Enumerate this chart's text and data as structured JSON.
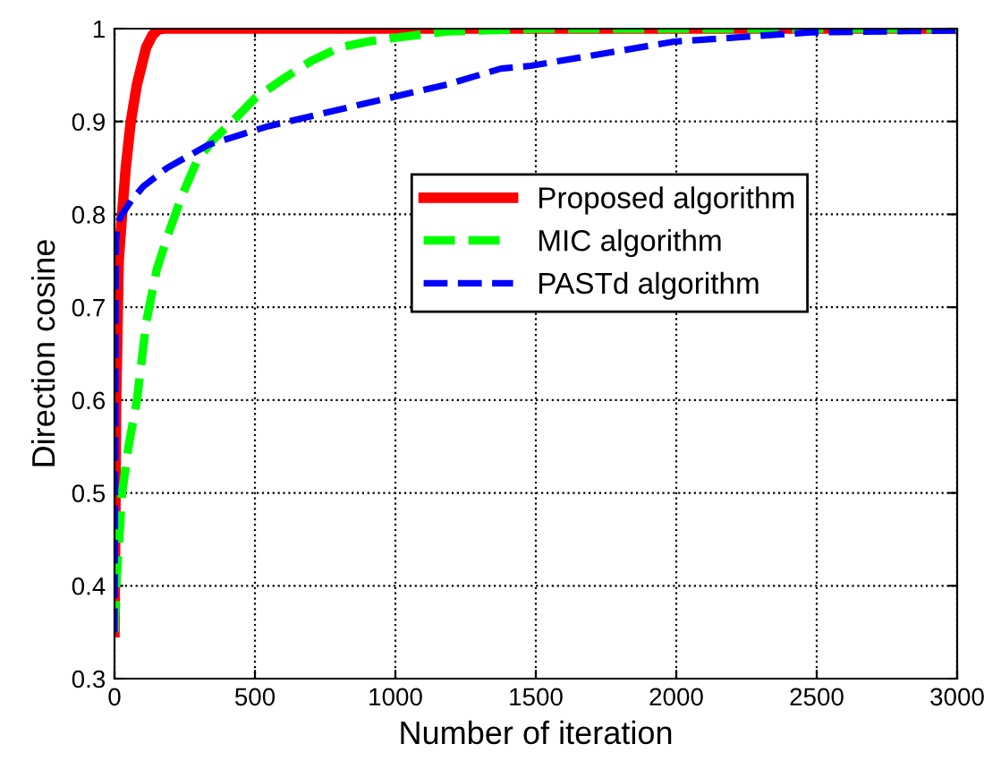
{
  "chart_data": {
    "type": "line",
    "xlabel": "Number of iteration",
    "ylabel": "Direction cosine",
    "xlim": [
      0,
      3000
    ],
    "ylim": [
      0.3,
      1
    ],
    "xticks": [
      0,
      500,
      1000,
      1500,
      2000,
      2500,
      3000
    ],
    "yticks": [
      0.3,
      0.4,
      0.5,
      0.6,
      0.7,
      0.8,
      0.9,
      1
    ],
    "grid": true,
    "legend": "center right",
    "series": [
      {
        "name": "Proposed algorithm",
        "color": "#ff0000",
        "line_style": "solid",
        "x": [
          0,
          6,
          15,
          27,
          40,
          58,
          80,
          113,
          135,
          155,
          175,
          3000
        ],
        "values": [
          0.35,
          0.6,
          0.75,
          0.8,
          0.85,
          0.9,
          0.94,
          0.98,
          0.993,
          0.999,
          1,
          1
        ]
      },
      {
        "name": "MIC algorithm",
        "color": "#00ff00",
        "line_style": "dashed",
        "x": [
          0,
          6,
          27,
          50,
          80,
          113,
          150,
          187,
          240,
          293,
          350,
          420,
          500,
          611,
          700,
          803,
          900,
          994,
          1185,
          1500,
          2000,
          3000
        ],
        "values": [
          0.35,
          0.4,
          0.5,
          0.55,
          0.6,
          0.684,
          0.74,
          0.775,
          0.82,
          0.857,
          0.88,
          0.9,
          0.925,
          0.948,
          0.965,
          0.98,
          0.986,
          0.99,
          0.997,
          1,
          1,
          1
        ]
      },
      {
        "name": "PASTd algorithm",
        "color": "#0000ff",
        "line_style": "dashed",
        "x": [
          0,
          3,
          5,
          10,
          27,
          60,
          102,
          187,
          335,
          548,
          760,
          972,
          1185,
          1376,
          1482,
          1992,
          2480,
          3000
        ],
        "values": [
          0.35,
          0.6,
          0.77,
          0.79,
          0.8,
          0.815,
          0.83,
          0.85,
          0.875,
          0.895,
          0.91,
          0.925,
          0.94,
          0.957,
          0.96,
          0.986,
          0.996,
          0.998
        ]
      }
    ]
  }
}
